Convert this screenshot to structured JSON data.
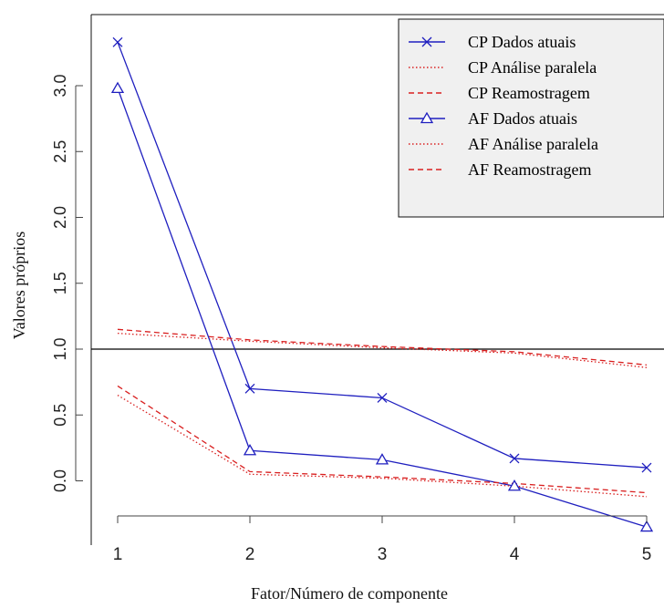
{
  "chart_data": {
    "type": "line",
    "title": "",
    "xlabel": "Fator/Número de componente",
    "ylabel": "Valores próprios",
    "x": [
      1,
      2,
      3,
      4,
      5
    ],
    "xlim": [
      0.95,
      5.05
    ],
    "ylim": [
      -0.25,
      3.55
    ],
    "x_ticks": [
      "1",
      "2",
      "3",
      "4",
      "5"
    ],
    "y_ticks": [
      {
        "value": 0.0,
        "label": "0.0"
      },
      {
        "value": 0.5,
        "label": "0.5"
      },
      {
        "value": 1.0,
        "label": "1.0"
      },
      {
        "value": 1.5,
        "label": "1.5"
      },
      {
        "value": 2.0,
        "label": "2.0"
      },
      {
        "value": 2.5,
        "label": "2.5"
      },
      {
        "value": 3.0,
        "label": "3.0"
      }
    ],
    "reference_line": {
      "y": 1.0,
      "color": "#000000"
    },
    "grid": false,
    "legend_position": "top-right",
    "series": [
      {
        "name": "CP Dados atuais",
        "values": [
          3.33,
          0.7,
          0.63,
          0.17,
          0.1
        ],
        "color": "#1f1fbf",
        "style": "solid",
        "marker": "x"
      },
      {
        "name": "CP Análise paralela",
        "values": [
          1.12,
          1.06,
          1.01,
          0.97,
          0.86
        ],
        "color": "#d92020",
        "style": "dotted",
        "marker": "none"
      },
      {
        "name": "CP Reamostragem",
        "values": [
          1.15,
          1.07,
          1.02,
          0.98,
          0.88
        ],
        "color": "#d92020",
        "style": "dashed",
        "marker": "none"
      },
      {
        "name": "AF Dados atuais",
        "values": [
          2.98,
          0.23,
          0.16,
          -0.04,
          -0.35
        ],
        "color": "#1f1fbf",
        "style": "solid",
        "marker": "triangle"
      },
      {
        "name": "AF Análise paralela",
        "values": [
          0.65,
          0.05,
          0.02,
          -0.04,
          -0.12
        ],
        "color": "#d92020",
        "style": "dotted",
        "marker": "none"
      },
      {
        "name": "AF Reamostragem",
        "values": [
          0.72,
          0.07,
          0.03,
          -0.02,
          -0.09
        ],
        "color": "#d92020",
        "style": "dashed",
        "marker": "none"
      }
    ]
  }
}
